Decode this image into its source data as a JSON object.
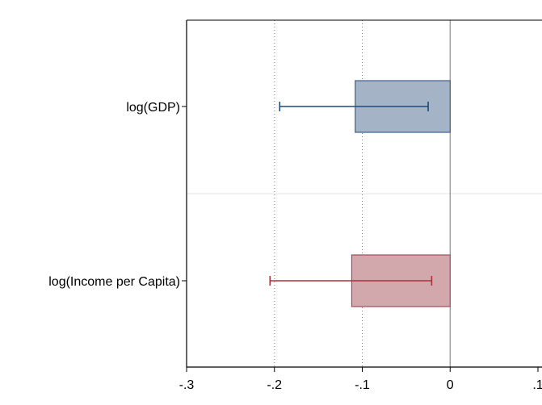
{
  "chart_data": {
    "type": "bar",
    "orientation": "horizontal",
    "title": "",
    "xlabel": "",
    "ylabel": "",
    "xlim": [
      -0.3,
      0.1
    ],
    "x_ticks": [
      -0.3,
      -0.2,
      -0.1,
      0,
      0.1
    ],
    "x_tick_labels": [
      "-.3",
      "-.2",
      "-.1",
      "0",
      ".1"
    ],
    "categories": [
      "log(GDP)",
      "log(Income per Capita)"
    ],
    "values": [
      -0.108,
      -0.112
    ],
    "ci_low": [
      -0.194,
      -0.205
    ],
    "ci_high": [
      -0.025,
      -0.021
    ],
    "colors": {
      "fill": [
        "#a4b4c6",
        "#d2a8ac"
      ],
      "stroke": [
        "#3a5f8f",
        "#a84a56"
      ],
      "errorbar": [
        "#1f4a7a",
        "#a8323e"
      ]
    },
    "reference_line": 0,
    "x_gridlines": [
      -0.2,
      -0.1
    ],
    "grid_style": "dotted",
    "legend": "none"
  }
}
